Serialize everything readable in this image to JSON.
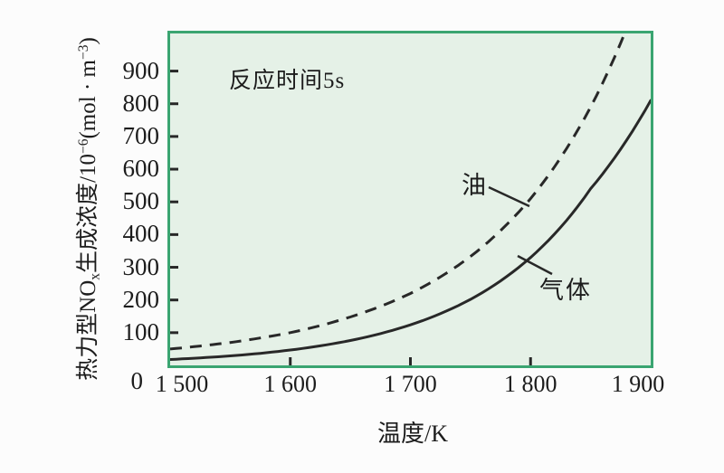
{
  "chart": {
    "annotation": "反应时间5s",
    "x_axis_title": "温度/K",
    "y_axis_title": {
      "seg1": "热力型NO",
      "sub1": "x",
      "seg2": "生成浓度/10",
      "sup1": "−6",
      "seg3": "(mol · m",
      "sup2": "−3",
      "seg4": ")"
    },
    "series_labels": {
      "oil": "油",
      "gas": "气体"
    },
    "colors": {
      "plot_background": "#e5f1e7",
      "plot_border": "#3aa571",
      "curve": "#282828",
      "text": "#1c1c1c"
    }
  },
  "chart_data": {
    "type": "line",
    "title": "",
    "annotation": "反应时间5s",
    "xlabel": "温度/K",
    "ylabel": "热力型NOx生成浓度/10^-6 (mol·m^-3)",
    "xlim": [
      1500,
      1900
    ],
    "ylim": [
      0,
      1015
    ],
    "grid": false,
    "legend_position": "inline-curve-labels",
    "x": [
      1500,
      1550,
      1600,
      1650,
      1700,
      1750,
      1800,
      1850,
      1900
    ],
    "x_tick_values": [
      1500,
      1600,
      1700,
      1800,
      1900
    ],
    "x_tick_labels": [
      "1 500",
      "1 600",
      "1 700",
      "1 800",
      "1 900"
    ],
    "y_tick_values": [
      0,
      100,
      200,
      300,
      400,
      500,
      600,
      700,
      800,
      900
    ],
    "series": [
      {
        "name": "油",
        "style": "dashed",
        "values": [
          50,
          70,
          100,
          148,
          220,
          333,
          510,
          790,
          1230
        ]
      },
      {
        "name": "气体",
        "style": "solid",
        "values": [
          18,
          29,
          47,
          76,
          124,
          202,
          330,
          540,
          810
        ]
      }
    ]
  }
}
